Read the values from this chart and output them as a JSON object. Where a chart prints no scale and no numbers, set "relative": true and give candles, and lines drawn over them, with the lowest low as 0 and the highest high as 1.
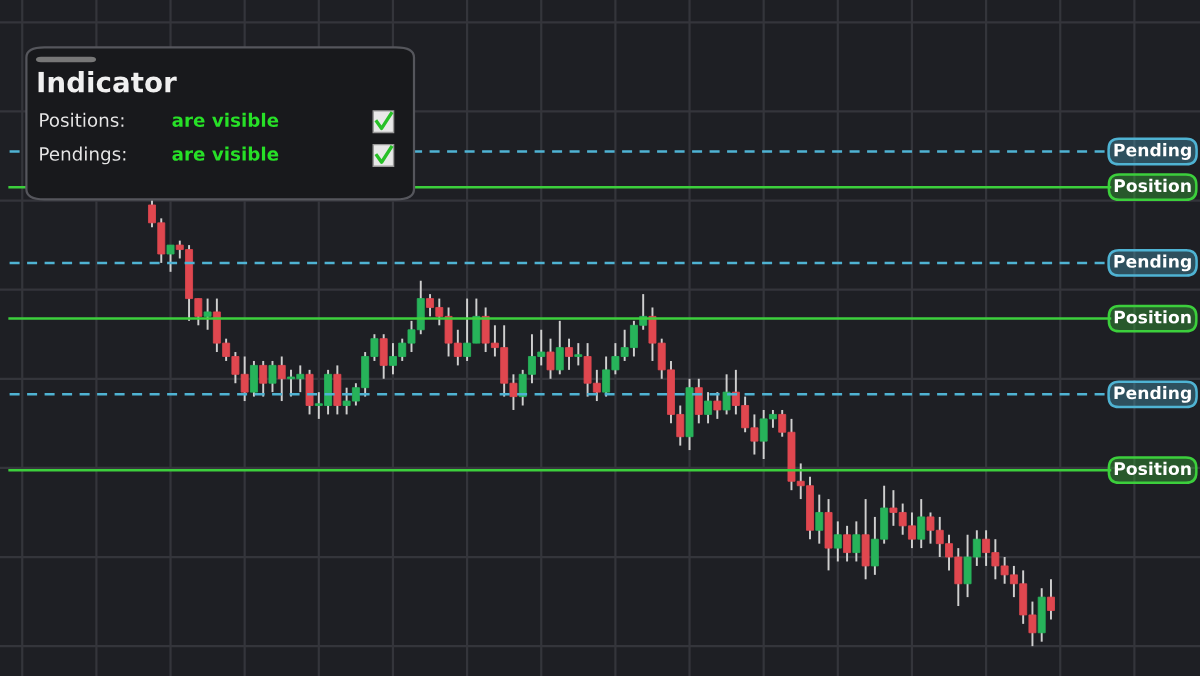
{
  "chart_data": {
    "type": "candlestick",
    "relative": true,
    "title": "Indicator",
    "annotations": [
      "Positions:",
      "are visible",
      "Pendings:",
      "are visible"
    ],
    "categories": [
      null,
      null,
      null,
      null,
      null,
      null,
      null,
      null,
      null,
      null,
      null,
      null,
      null,
      null,
      null,
      null,
      null,
      null,
      null,
      null,
      null,
      null,
      null,
      null,
      null,
      null,
      null,
      null,
      null,
      null,
      null,
      null,
      null,
      null,
      null,
      null,
      null,
      null,
      null,
      null,
      null,
      null,
      null,
      null,
      null,
      null,
      null,
      null,
      null,
      null,
      null,
      null,
      null,
      null,
      null,
      null,
      null,
      null,
      null,
      null,
      null,
      null,
      null,
      null,
      null,
      null,
      null,
      null,
      null,
      null,
      null,
      null,
      null,
      null,
      null,
      null,
      null,
      null,
      null,
      null,
      null,
      null,
      null,
      null,
      null,
      null,
      null,
      null,
      null,
      null,
      null,
      null,
      null,
      null,
      null,
      null,
      null,
      null,
      null,
      null,
      null,
      null,
      null,
      null
    ],
    "ohlc": [
      null,
      null,
      null,
      null,
      null,
      null,
      [
        0.99,
        1.0,
        0.94,
        0.95
      ],
      [
        0.95,
        0.96,
        0.86,
        0.88
      ],
      [
        0.88,
        0.9,
        0.84,
        0.9
      ],
      [
        0.9,
        0.91,
        0.87,
        0.89
      ],
      [
        0.89,
        0.9,
        0.73,
        0.78
      ],
      [
        0.78,
        0.78,
        0.72,
        0.74
      ],
      [
        0.74,
        0.78,
        0.71,
        0.75
      ],
      [
        0.75,
        0.78,
        0.66,
        0.68
      ],
      [
        0.68,
        0.69,
        0.64,
        0.65
      ],
      [
        0.65,
        0.66,
        0.59,
        0.61
      ],
      [
        0.61,
        0.65,
        0.55,
        0.57
      ],
      [
        0.57,
        0.64,
        0.56,
        0.63
      ],
      [
        0.63,
        0.64,
        0.56,
        0.59
      ],
      [
        0.59,
        0.64,
        0.57,
        0.63
      ],
      [
        0.63,
        0.65,
        0.55,
        0.6
      ],
      [
        0.6,
        0.62,
        0.56,
        0.6
      ],
      [
        0.6,
        0.63,
        0.57,
        0.61
      ],
      [
        0.61,
        0.62,
        0.52,
        0.54
      ],
      [
        0.54,
        0.57,
        0.51,
        0.54
      ],
      [
        0.54,
        0.62,
        0.52,
        0.61
      ],
      [
        0.61,
        0.63,
        0.52,
        0.54
      ],
      [
        0.54,
        0.58,
        0.52,
        0.55
      ],
      [
        0.55,
        0.59,
        0.54,
        0.58
      ],
      [
        0.58,
        0.66,
        0.56,
        0.65
      ],
      [
        0.65,
        0.7,
        0.64,
        0.69
      ],
      [
        0.69,
        0.7,
        0.6,
        0.63
      ],
      [
        0.63,
        0.68,
        0.61,
        0.65
      ],
      [
        0.65,
        0.69,
        0.64,
        0.68
      ],
      [
        0.68,
        0.73,
        0.66,
        0.71
      ],
      [
        0.71,
        0.82,
        0.7,
        0.78
      ],
      [
        0.78,
        0.79,
        0.74,
        0.76
      ],
      [
        0.76,
        0.78,
        0.72,
        0.74
      ],
      [
        0.74,
        0.76,
        0.65,
        0.68
      ],
      [
        0.68,
        0.71,
        0.63,
        0.65
      ],
      [
        0.65,
        0.78,
        0.64,
        0.68
      ],
      [
        0.68,
        0.78,
        0.68,
        0.74
      ],
      [
        0.74,
        0.76,
        0.66,
        0.68
      ],
      [
        0.68,
        0.72,
        0.65,
        0.67
      ],
      [
        0.67,
        0.72,
        0.56,
        0.59
      ],
      [
        0.59,
        0.61,
        0.53,
        0.56
      ],
      [
        0.56,
        0.62,
        0.54,
        0.61
      ],
      [
        0.61,
        0.7,
        0.59,
        0.65
      ],
      [
        0.65,
        0.71,
        0.63,
        0.66
      ],
      [
        0.66,
        0.69,
        0.6,
        0.62
      ],
      [
        0.62,
        0.73,
        0.61,
        0.67
      ],
      [
        0.67,
        0.69,
        0.62,
        0.65
      ],
      [
        0.65,
        0.68,
        0.63,
        0.65
      ],
      [
        0.65,
        0.68,
        0.56,
        0.59
      ],
      [
        0.59,
        0.62,
        0.55,
        0.57
      ],
      [
        0.57,
        0.65,
        0.56,
        0.62
      ],
      [
        0.62,
        0.68,
        0.61,
        0.65
      ],
      [
        0.65,
        0.71,
        0.64,
        0.67
      ],
      [
        0.67,
        0.73,
        0.65,
        0.72
      ],
      [
        0.72,
        0.79,
        0.71,
        0.74
      ],
      [
        0.74,
        0.76,
        0.64,
        0.68
      ],
      [
        0.68,
        0.69,
        0.6,
        0.62
      ],
      [
        0.62,
        0.64,
        0.5,
        0.52
      ],
      [
        0.52,
        0.54,
        0.45,
        0.47
      ],
      [
        0.47,
        0.6,
        0.44,
        0.58
      ],
      [
        0.58,
        0.6,
        0.5,
        0.52
      ],
      [
        0.52,
        0.57,
        0.5,
        0.55
      ],
      [
        0.55,
        0.57,
        0.51,
        0.53
      ],
      [
        0.53,
        0.61,
        0.52,
        0.57
      ],
      [
        0.57,
        0.62,
        0.52,
        0.54
      ],
      [
        0.54,
        0.56,
        0.48,
        0.49
      ],
      [
        0.49,
        0.52,
        0.43,
        0.46
      ],
      [
        0.46,
        0.53,
        0.42,
        0.51
      ],
      [
        0.51,
        0.53,
        0.49,
        0.52
      ],
      [
        0.52,
        0.53,
        0.47,
        0.48
      ],
      [
        0.48,
        0.51,
        0.35,
        0.37
      ],
      [
        0.37,
        0.41,
        0.33,
        0.36
      ],
      [
        0.36,
        0.38,
        0.24,
        0.26
      ],
      [
        0.26,
        0.34,
        0.23,
        0.3
      ],
      [
        0.3,
        0.33,
        0.17,
        0.22
      ],
      [
        0.22,
        0.28,
        0.19,
        0.25
      ],
      [
        0.25,
        0.27,
        0.19,
        0.21
      ],
      [
        0.21,
        0.28,
        0.19,
        0.25
      ],
      [
        0.25,
        0.33,
        0.15,
        0.18
      ],
      [
        0.18,
        0.29,
        0.16,
        0.24
      ],
      [
        0.24,
        0.36,
        0.23,
        0.31
      ],
      [
        0.31,
        0.35,
        0.27,
        0.3
      ],
      [
        0.3,
        0.32,
        0.25,
        0.27
      ],
      [
        0.27,
        0.3,
        0.22,
        0.24
      ],
      [
        0.24,
        0.33,
        0.22,
        0.29
      ],
      [
        0.29,
        0.3,
        0.23,
        0.26
      ],
      [
        0.26,
        0.29,
        0.2,
        0.23
      ],
      [
        0.23,
        0.25,
        0.17,
        0.2
      ],
      [
        0.2,
        0.22,
        0.09,
        0.14
      ],
      [
        0.14,
        0.25,
        0.11,
        0.2
      ],
      [
        0.2,
        0.26,
        0.18,
        0.24
      ],
      [
        0.24,
        0.26,
        0.18,
        0.21
      ],
      [
        0.21,
        0.24,
        0.15,
        0.18
      ],
      [
        0.18,
        0.2,
        0.14,
        0.16
      ],
      [
        0.16,
        0.18,
        0.11,
        0.14
      ],
      [
        0.14,
        0.17,
        0.05,
        0.07
      ],
      [
        0.07,
        0.1,
        0.0,
        0.03
      ],
      [
        0.03,
        0.13,
        0.01,
        0.11
      ],
      [
        0.11,
        0.15,
        0.06,
        0.08
      ]
    ],
    "ref_lines": [
      {
        "axis": "y",
        "value": 1.11,
        "label": "Pending",
        "color": "#4fb3d3",
        "line_style": "dashed"
      },
      {
        "axis": "y",
        "value": 1.03,
        "label": "Position",
        "color": "#3ccf3c",
        "line_style": "solid"
      },
      {
        "axis": "y",
        "value": 0.86,
        "label": "Pending",
        "color": "#4fb3d3",
        "line_style": "dashed"
      },
      {
        "axis": "y",
        "value": 0.735,
        "label": "Position",
        "color": "#3ccf3c",
        "line_style": "solid"
      },
      {
        "axis": "y",
        "value": 0.565,
        "label": "Pending",
        "color": "#4fb3d3",
        "line_style": "dashed"
      },
      {
        "axis": "y",
        "value": 0.395,
        "label": "Position",
        "color": "#3ccf3c",
        "line_style": "solid"
      }
    ],
    "grid": true,
    "tick_labels": false
  }
}
